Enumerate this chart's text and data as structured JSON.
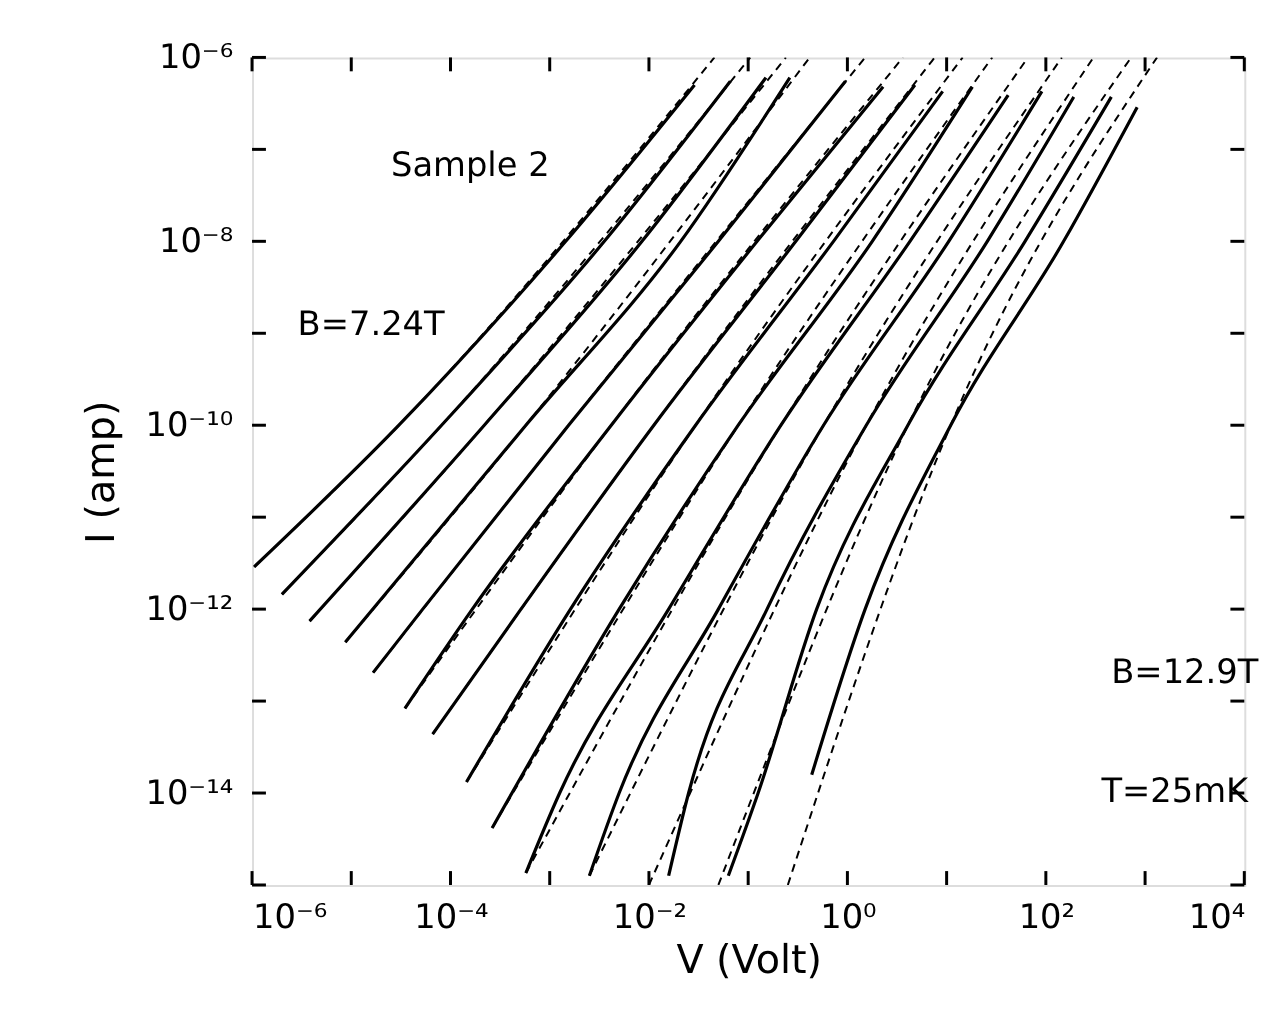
{
  "chart_data": {
    "type": "line",
    "xlabel": "V  (Volt)",
    "ylabel": "I  (amp)",
    "log": "xy",
    "grid": false,
    "marker": "none",
    "annotations": [
      "Sample 2",
      "B=7.24T",
      "B=12.9T",
      "T=25mK"
    ],
    "xlim": [
      1e-06,
      10000
    ],
    "ylim": [
      1e-15,
      1e-06
    ],
    "xticks": [
      {
        "value": 1e-06,
        "label": "10⁻⁶"
      },
      {
        "value": 1e-05,
        "label": null
      },
      {
        "value": 0.0001,
        "label": "10⁻⁴"
      },
      {
        "value": 0.001,
        "label": null
      },
      {
        "value": 0.01,
        "label": "10⁻²"
      },
      {
        "value": 0.1,
        "label": null
      },
      {
        "value": 1,
        "label": "10⁰"
      },
      {
        "value": 10,
        "label": null
      },
      {
        "value": 100,
        "label": "10²"
      },
      {
        "value": 1000,
        "label": null
      },
      {
        "value": 10000,
        "label": "10⁴"
      }
    ],
    "yticks": [
      {
        "value": 1e-15,
        "label": null
      },
      {
        "value": 1e-14,
        "label": "10⁻¹⁴"
      },
      {
        "value": 1e-13,
        "label": null
      },
      {
        "value": 1e-12,
        "label": "10⁻¹²"
      },
      {
        "value": 1e-11,
        "label": null
      },
      {
        "value": 1e-10,
        "label": "10⁻¹⁰"
      },
      {
        "value": 1e-09,
        "label": null
      },
      {
        "value": 1e-08,
        "label": "10⁻⁸"
      },
      {
        "value": 1e-07,
        "label": null
      },
      {
        "value": 1e-06,
        "label": "10⁻⁶"
      }
    ],
    "series": [
      {
        "color": "#000000",
        "line_style": "solid",
        "x": [
          1.05e-06,
          3.02e-05,
          0.00145,
          0.0288
        ],
        "values": [
          2.88e-12,
          1e-10,
          1e-08,
          5.01e-07
        ]
      },
      {
        "color": "#000000",
        "line_style": "solid",
        "x": [
          2e-06,
          8.13e-05,
          0.00355,
          0.0661
        ],
        "values": [
          1.45e-12,
          1e-10,
          1e-08,
          5.5e-07
        ]
      },
      {
        "color": "#000000",
        "line_style": "solid",
        "x": [
          3.8e-06,
          0.000219,
          0.00851,
          0.151
        ],
        "values": [
          7.41e-13,
          1e-10,
          1e-08,
          6.03e-07
        ]
      },
      {
        "color": "#000000",
        "line_style": "solid",
        "x": [
          8.71e-06,
          0.000575,
          0.0209,
          0.263
        ],
        "values": [
          4.37e-13,
          1e-10,
          1e-08,
          6.03e-07
        ]
      },
      {
        "color": "#000000",
        "line_style": "solid",
        "x": [
          1.66e-05,
          5.25e-05,
          0.00155,
          0.0501,
          0.955
        ],
        "values": [
          2.04e-13,
          1e-12,
          1e-10,
          1e-08,
          5.5e-07
        ]
      },
      {
        "color": "#000000",
        "line_style": "solid",
        "x": [
          3.47e-05,
          0.000166,
          0.00417,
          0.123,
          2.29
        ],
        "values": [
          8.32e-14,
          1e-12,
          1e-10,
          1e-08,
          4.79e-07
        ]
      },
      {
        "color": "#000000",
        "line_style": "solid",
        "x": [
          6.61e-05,
          0.000513,
          0.0112,
          0.302,
          4.79
        ],
        "values": [
          4.37e-14,
          1e-12,
          1e-10,
          1e-08,
          5.01e-07
        ]
      },
      {
        "color": "#000000",
        "line_style": "solid",
        "x": [
          0.000145,
          0.00162,
          0.0295,
          0.724,
          9.12
        ],
        "values": [
          1.32e-14,
          1e-12,
          1e-10,
          1e-08,
          4.27e-07
        ]
      },
      {
        "color": "#000000",
        "line_style": "solid",
        "x": [
          0.000263,
          0.00501,
          0.0794,
          1.78,
          18.2
        ],
        "values": [
          4.17e-15,
          1e-12,
          1e-10,
          1e-08,
          4.79e-07
        ]
      },
      {
        "color": "#000000",
        "line_style": "solid",
        "x": [
          0.000575,
          0.00126,
          0.0158,
          0.214,
          4.27,
          41.7
        ],
        "values": [
          1.35e-15,
          1e-14,
          1e-12,
          1e-10,
          1e-08,
          3.89e-07
        ]
      },
      {
        "color": "#000000",
        "line_style": "solid",
        "x": [
          0.00251,
          0.00501,
          0.0501,
          0.575,
          10.5,
          91.2
        ],
        "values": [
          1.26e-15,
          1e-14,
          1e-12,
          1e-10,
          1e-08,
          4.27e-07
        ]
      },
      {
        "color": "#000000",
        "line_style": "solid",
        "x": [
          0.0158,
          0.0251,
          0.155,
          1.55,
          25.7,
          191
        ],
        "values": [
          1.26e-15,
          1e-14,
          1e-12,
          1e-10,
          1e-08,
          3.72e-07
        ]
      },
      {
        "color": "#000000",
        "line_style": "solid",
        "x": [
          0.0631,
          0.126,
          0.49,
          4.07,
          61.7,
          457
        ],
        "values": [
          1.26e-15,
          1e-14,
          1e-12,
          1e-10,
          1e-08,
          3.72e-07
        ]
      },
      {
        "color": "#000000",
        "line_style": "solid",
        "x": [
          0.437,
          1.51,
          11.0,
          151,
          832
        ],
        "values": [
          1.58e-14,
          1e-12,
          1e-10,
          1e-08,
          2.88e-07
        ]
      },
      {
        "color": "#000000",
        "line_style": "dashed",
        "x": [
          1.05e-06,
          3.02e-05,
          0.0457
        ],
        "values": [
          2.88e-12,
          1e-10,
          1e-06
        ]
      },
      {
        "color": "#000000",
        "line_style": "dashed",
        "x": [
          2e-06,
          8.13e-05,
          0.105
        ],
        "values": [
          1.45e-12,
          1e-10,
          1e-06
        ]
      },
      {
        "color": "#000000",
        "line_style": "dashed",
        "x": [
          3.8e-06,
          0.000219,
          0.24
        ],
        "values": [
          7.41e-13,
          1e-10,
          1e-06
        ]
      },
      {
        "color": "#000000",
        "line_style": "dashed",
        "x": [
          8.71e-06,
          0.000575,
          0.417
        ],
        "values": [
          4.37e-13,
          1e-10,
          1e-06
        ]
      },
      {
        "color": "#000000",
        "line_style": "dashed",
        "x": [
          1.66e-05,
          0.00155,
          1.51
        ],
        "values": [
          2.04e-13,
          1e-10,
          1e-06
        ]
      },
      {
        "color": "#000000",
        "line_style": "dashed",
        "x": [
          3.47e-05,
          0.00417,
          3.63
        ],
        "values": [
          8.32e-14,
          1e-10,
          1e-06
        ]
      },
      {
        "color": "#000000",
        "line_style": "dashed",
        "x": [
          6.61e-05,
          0.0112,
          7.59
        ],
        "values": [
          4.37e-14,
          1e-10,
          1e-06
        ]
      },
      {
        "color": "#000000",
        "line_style": "dashed",
        "x": [
          0.000145,
          0.0295,
          14.5
        ],
        "values": [
          1.32e-14,
          1e-10,
          1e-06
        ]
      },
      {
        "color": "#000000",
        "line_style": "dashed",
        "x": [
          0.000263,
          0.0794,
          28.8
        ],
        "values": [
          4.17e-15,
          1e-10,
          1e-06
        ]
      },
      {
        "color": "#000000",
        "line_style": "dashed",
        "x": [
          0.000575,
          0.214,
          66.1
        ],
        "values": [
          1.35e-15,
          1e-10,
          1e-06
        ]
      },
      {
        "color": "#000000",
        "line_style": "dashed",
        "x": [
          0.00251,
          0.575,
          145
        ],
        "values": [
          1.26e-15,
          1e-10,
          1e-06
        ]
      },
      {
        "color": "#000000",
        "line_style": "dashed",
        "x": [
          0.01,
          1.55,
          302
        ],
        "values": [
          1e-15,
          1e-10,
          1e-06
        ]
      },
      {
        "color": "#000000",
        "line_style": "dashed",
        "x": [
          0.0501,
          4.07,
          724
        ],
        "values": [
          1e-15,
          1e-10,
          1e-06
        ]
      },
      {
        "color": "#000000",
        "line_style": "dashed",
        "x": [
          0.251,
          11.0,
          1320
        ],
        "values": [
          1e-15,
          1e-10,
          1e-06
        ]
      }
    ]
  }
}
